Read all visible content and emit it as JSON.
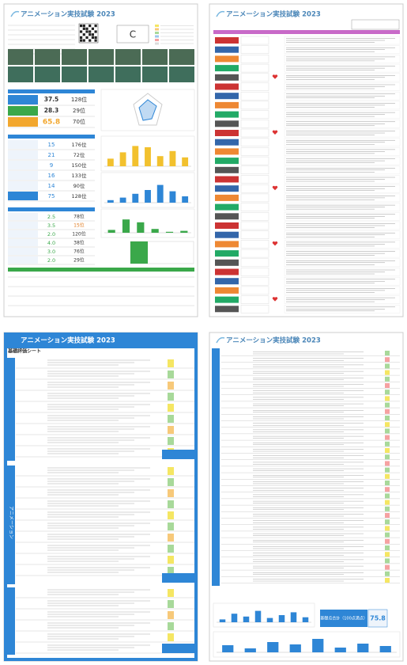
{
  "doc_title": "アニメーション実技試験 2023",
  "p1": {
    "grade": "C",
    "scores": [
      {
        "value": 37.5,
        "rank": "128位"
      },
      {
        "value": 28.3,
        "rank": "29位"
      },
      {
        "value": 65.8,
        "rank": "70位"
      }
    ],
    "items": [
      {
        "value": 15,
        "rank": "176位"
      },
      {
        "value": 21,
        "rank": "72位"
      },
      {
        "value": 9,
        "rank": "150位"
      },
      {
        "value": 16,
        "rank": "133位"
      },
      {
        "value": 14,
        "rank": "90位"
      },
      {
        "value": 75,
        "rank": "128位"
      }
    ],
    "items2": [
      {
        "value": "2.5",
        "rank": "78位"
      },
      {
        "value": "3.5",
        "rank": "15位"
      },
      {
        "value": "2.0",
        "rank": "120位"
      },
      {
        "value": "4.0",
        "rank": "38位"
      },
      {
        "value": "3.0",
        "rank": "76位"
      },
      {
        "value": "2.0",
        "rank": "29位"
      }
    ],
    "charts": [
      {
        "type": "bar",
        "color": "#f2c12e",
        "ylim": [
          0,
          100
        ],
        "values": [
          30,
          55,
          80,
          75,
          40,
          60,
          35
        ]
      },
      {
        "type": "bar",
        "color": "#2e86d6",
        "ylim": [
          0,
          100
        ],
        "values": [
          10,
          20,
          35,
          50,
          70,
          45,
          25
        ]
      },
      {
        "type": "bar",
        "color": "#3aa84a",
        "ylim": [
          0,
          100
        ],
        "values": [
          15,
          70,
          55,
          20,
          5,
          10
        ]
      }
    ]
  },
  "p3": {
    "heading": "基礎評価シート",
    "section": "アニメーション"
  },
  "p4": {
    "total_label": "基礎点合計（100点満点）",
    "total": 75.8,
    "charts": [
      {
        "type": "bar",
        "color": "#2e86d6",
        "ylim": [
          0,
          100
        ],
        "values": [
          20,
          60,
          40,
          80,
          30,
          50,
          70,
          35
        ]
      },
      {
        "type": "bar",
        "color": "#2e86d6",
        "ylim": [
          0,
          100
        ],
        "values": [
          45,
          25,
          65,
          50,
          85,
          30,
          55,
          40
        ]
      }
    ]
  }
}
